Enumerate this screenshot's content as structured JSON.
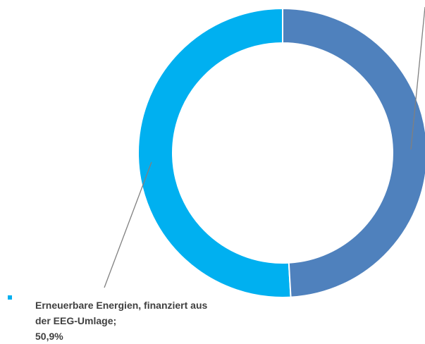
{
  "chart_data": {
    "type": "donut",
    "categories": [
      null,
      "Erneuerbare Energien, finanziert aus der EEG-Umlage;"
    ],
    "values": [
      49.1,
      50.9
    ],
    "value_labels": [
      null,
      "50,9%"
    ],
    "colors": [
      "#4f81bd",
      "#00b0f0"
    ]
  }
}
